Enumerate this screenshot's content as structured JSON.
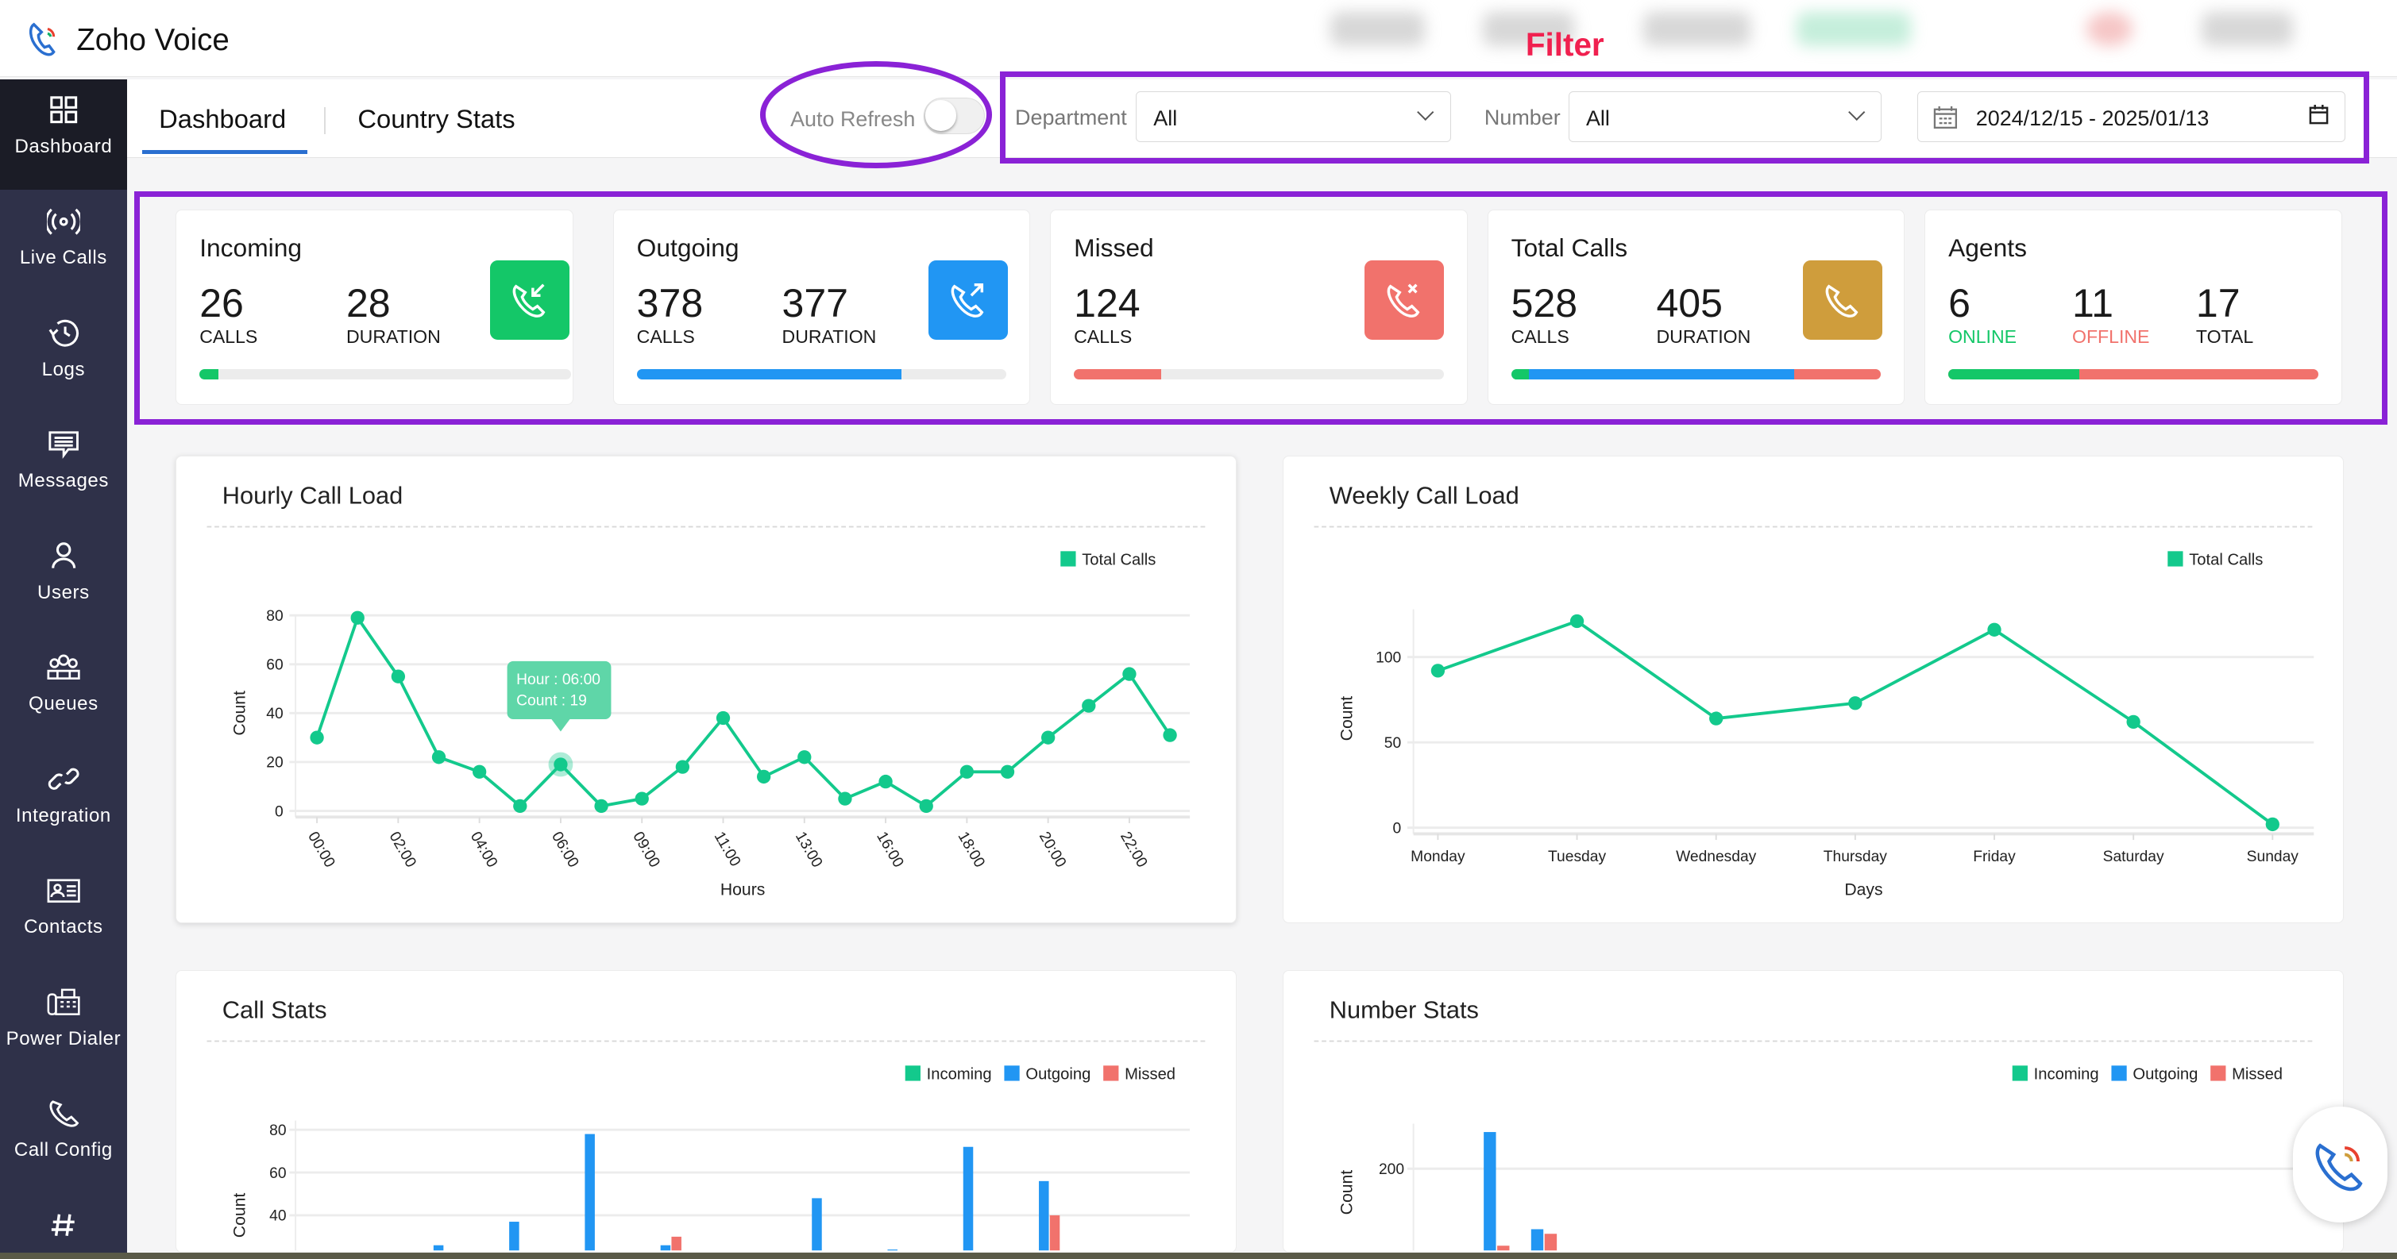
{
  "app": {
    "title": "Zoho Voice",
    "annotation": "Filter"
  },
  "sidebar": {
    "items": [
      {
        "label": "Dashboard",
        "icon": "grid-icon",
        "active": true
      },
      {
        "label": "Live Calls",
        "icon": "broadcast-icon"
      },
      {
        "label": "Logs",
        "icon": "history-icon"
      },
      {
        "label": "Messages",
        "icon": "message-icon"
      },
      {
        "label": "Users",
        "icon": "user-icon"
      },
      {
        "label": "Queues",
        "icon": "group-icon"
      },
      {
        "label": "Integration",
        "icon": "link-icon"
      },
      {
        "label": "Contacts",
        "icon": "contact-card-icon"
      },
      {
        "label": "Power Dialer",
        "icon": "fax-icon"
      },
      {
        "label": "Call Config",
        "icon": "phone-icon"
      },
      {
        "label": "",
        "icon": "hash-icon"
      }
    ]
  },
  "tabs": [
    {
      "label": "Dashboard",
      "active": true
    },
    {
      "label": "Country Stats"
    }
  ],
  "filters": {
    "auto_refresh_label": "Auto Refresh",
    "auto_refresh_on": false,
    "department_label": "Department",
    "department_value": "All",
    "number_label": "Number",
    "number_value": "All",
    "date_range": "2024/12/15 - 2025/01/13"
  },
  "colors": {
    "incoming": "#14c768",
    "outgoing": "#2196f3",
    "missed": "#f1726c",
    "total": "#cf9d3c",
    "line": "#13c98c",
    "annotation": "#8a22d6"
  },
  "cards": {
    "incoming": {
      "title": "Incoming",
      "calls": "26",
      "calls_label": "CALLS",
      "duration": "28",
      "duration_label": "DURATION",
      "progress_pct": 5
    },
    "outgoing": {
      "title": "Outgoing",
      "calls": "378",
      "calls_label": "CALLS",
      "duration": "377",
      "duration_label": "DURATION",
      "progress_pct": 71.6
    },
    "missed": {
      "title": "Missed",
      "calls": "124",
      "calls_label": "CALLS",
      "progress_pct": 23.5
    },
    "total": {
      "title": "Total Calls",
      "calls": "528",
      "calls_label": "CALLS",
      "duration": "405",
      "duration_label": "DURATION",
      "segments_pct": {
        "incoming": 4.9,
        "outgoing": 71.6,
        "missed": 23.5
      }
    },
    "agents": {
      "title": "Agents",
      "online": "6",
      "online_label": "ONLINE",
      "offline": "11",
      "offline_label": "OFFLINE",
      "total": "17",
      "total_label": "TOTAL",
      "online_pct": 35.3
    }
  },
  "chart_data": [
    {
      "type": "line",
      "title": "Hourly Call Load",
      "xlabel": "Hours",
      "ylabel": "Count",
      "legend": [
        "Total Calls"
      ],
      "legend_position": "top-right",
      "grid": true,
      "categories": [
        "00:00",
        "",
        "02:00",
        "",
        "04:00",
        "",
        "06:00",
        "",
        "09:00",
        "",
        "11:00",
        "",
        "13:00",
        "",
        "16:00",
        "",
        "18:00",
        "",
        "20:00",
        "",
        "22:00",
        ""
      ],
      "values": [
        30,
        79,
        55,
        22,
        16,
        2,
        19,
        2,
        5,
        18,
        38,
        14,
        22,
        5,
        12,
        2,
        16,
        16,
        30,
        43,
        56,
        31
      ],
      "ylim": [
        0,
        80
      ],
      "yticks": [
        0,
        20,
        40,
        60,
        80
      ],
      "tooltip": {
        "line1": "Hour : 06:00",
        "line2": "Count : 19"
      }
    },
    {
      "type": "line",
      "title": "Weekly Call Load",
      "xlabel": "Days",
      "ylabel": "Count",
      "legend": [
        "Total Calls"
      ],
      "legend_position": "top-right",
      "grid": true,
      "categories": [
        "Monday",
        "Tuesday",
        "Wednesday",
        "Thursday",
        "Friday",
        "Saturday",
        "Sunday"
      ],
      "values": [
        92,
        121,
        64,
        73,
        116,
        62,
        2
      ],
      "ylim": [
        0,
        128
      ],
      "yticks": [
        0,
        50,
        100
      ]
    },
    {
      "type": "bar",
      "title": "Call Stats",
      "ylabel": "Count",
      "legend": [
        "Incoming",
        "Outgoing",
        "Missed"
      ],
      "legend_position": "top-right",
      "grid": true,
      "series": [
        {
          "name": "Incoming",
          "values": [
            0,
            0,
            0,
            0,
            0,
            0,
            0,
            0,
            0,
            0,
            0
          ]
        },
        {
          "name": "Outgoing",
          "values": [
            0,
            26,
            37,
            78,
            26,
            0,
            48,
            24,
            72,
            56,
            0
          ]
        },
        {
          "name": "Missed",
          "values": [
            0,
            0,
            0,
            0,
            30,
            0,
            0,
            0,
            0,
            40,
            0
          ]
        }
      ],
      "yticks": [
        40,
        60,
        80
      ]
    },
    {
      "type": "bar",
      "title": "Number Stats",
      "ylabel": "Count",
      "legend": [
        "Incoming",
        "Outgoing",
        "Missed"
      ],
      "legend_position": "top-right",
      "grid": true,
      "series": [
        {
          "name": "Incoming",
          "values": [
            0,
            0
          ]
        },
        {
          "name": "Outgoing",
          "values": [
            240,
            134
          ]
        },
        {
          "name": "Missed",
          "values": [
            116,
            129
          ]
        }
      ],
      "yticks": [
        200
      ]
    }
  ]
}
